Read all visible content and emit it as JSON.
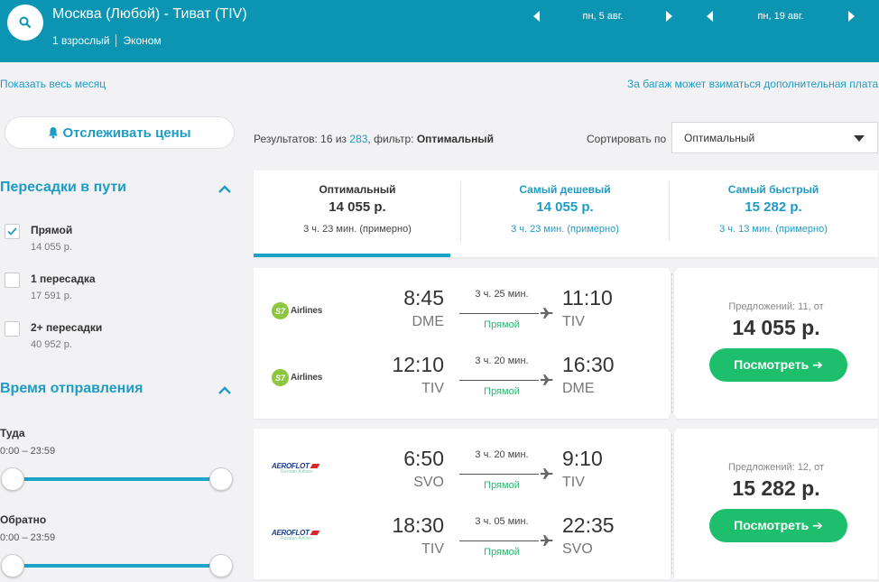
{
  "header": {
    "route": "Москва (Любой) - Тиват (TIV)",
    "passengers": "1 взрослый",
    "cabin": "Эконом",
    "date_out": "пн, 5 авг.",
    "date_back": "пн, 19 авг."
  },
  "links": {
    "show_month": "Показать весь месяц",
    "baggage_note": "За багаж может взиматься дополнительная плата"
  },
  "sidebar": {
    "track_label": "Отслеживать цены",
    "stops_title": "Пересадки в пути",
    "stops": [
      {
        "label": "Прямой",
        "price": "14 055 р.",
        "checked": true
      },
      {
        "label": "1 пересадка",
        "price": "17 591 р.",
        "checked": false
      },
      {
        "label": "2+ пересадки",
        "price": "40 952 р.",
        "checked": false
      }
    ],
    "time_title": "Время отправления",
    "out_label": "Туда",
    "out_range": "0:00 – 23:59",
    "back_label": "Обратно",
    "back_range": "0:00 – 23:59"
  },
  "results": {
    "prefix": "Результатов: 16 из",
    "total": "283",
    "filter_prefix": ", фильтр:",
    "filter": "Оптимальный",
    "sort_label": "Сортировать по",
    "sort_value": "Оптимальный"
  },
  "tabs": [
    {
      "name": "Оптимальный",
      "price": "14 055 р.",
      "duration": "3 ч. 23 мин. (примерно)"
    },
    {
      "name": "Самый дешевый",
      "price": "14 055 р.",
      "duration": "3 ч. 23 мин. (примерно)"
    },
    {
      "name": "Самый быстрый",
      "price": "15 282 р.",
      "duration": "3 ч. 13 мин. (примерно)"
    }
  ],
  "flights": [
    {
      "segments": [
        {
          "airline": "Airlines",
          "dep_time": "8:45",
          "dep_code": "DME",
          "duration": "3 ч. 25 мин.",
          "type": "Прямой",
          "arr_time": "11:10",
          "arr_code": "TIV"
        },
        {
          "airline": "Airlines",
          "dep_time": "12:10",
          "dep_code": "TIV",
          "duration": "3 ч. 20 мин.",
          "type": "Прямой",
          "arr_time": "16:30",
          "arr_code": "DME"
        }
      ],
      "offers": "Предложений: 11, от",
      "price": "14 055 р.",
      "button": "Посмотреть ➔"
    },
    {
      "segments": [
        {
          "airline": "AEROFLOT",
          "dep_time": "6:50",
          "dep_code": "SVO",
          "duration": "3 ч. 20 мин.",
          "type": "Прямой",
          "arr_time": "9:10",
          "arr_code": "TIV"
        },
        {
          "airline": "AEROFLOT",
          "dep_time": "18:30",
          "dep_code": "TIV",
          "duration": "3 ч. 05 мин.",
          "type": "Прямой",
          "arr_time": "22:35",
          "arr_code": "SVO"
        }
      ],
      "offers": "Предложений: 12, от",
      "price": "15 282 р.",
      "button": "Посмотреть ➔"
    }
  ]
}
